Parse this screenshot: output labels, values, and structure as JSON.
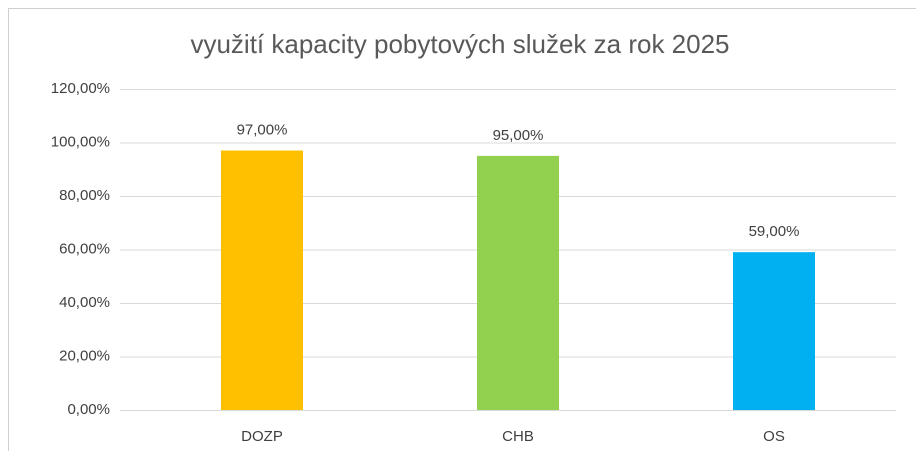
{
  "chart_data": {
    "type": "bar",
    "title": "využití kapacity pobytových služek za rok 2025",
    "categories": [
      "DOZP",
      "CHB",
      "OS"
    ],
    "values": [
      97,
      95,
      59
    ],
    "value_labels": [
      "97,00%",
      "95,00%",
      "59,00%"
    ],
    "colors": [
      "#ffc000",
      "#92d050",
      "#00b0f0"
    ],
    "ylim": [
      0,
      120
    ],
    "yticks": [
      {
        "value": 0,
        "label": "0,00%"
      },
      {
        "value": 20,
        "label": "20,00%"
      },
      {
        "value": 40,
        "label": "40,00%"
      },
      {
        "value": 60,
        "label": "60,00%"
      },
      {
        "value": 80,
        "label": "80,00%"
      },
      {
        "value": 100,
        "label": "100,00%"
      },
      {
        "value": 120,
        "label": "120,00%"
      }
    ],
    "grid": true
  }
}
